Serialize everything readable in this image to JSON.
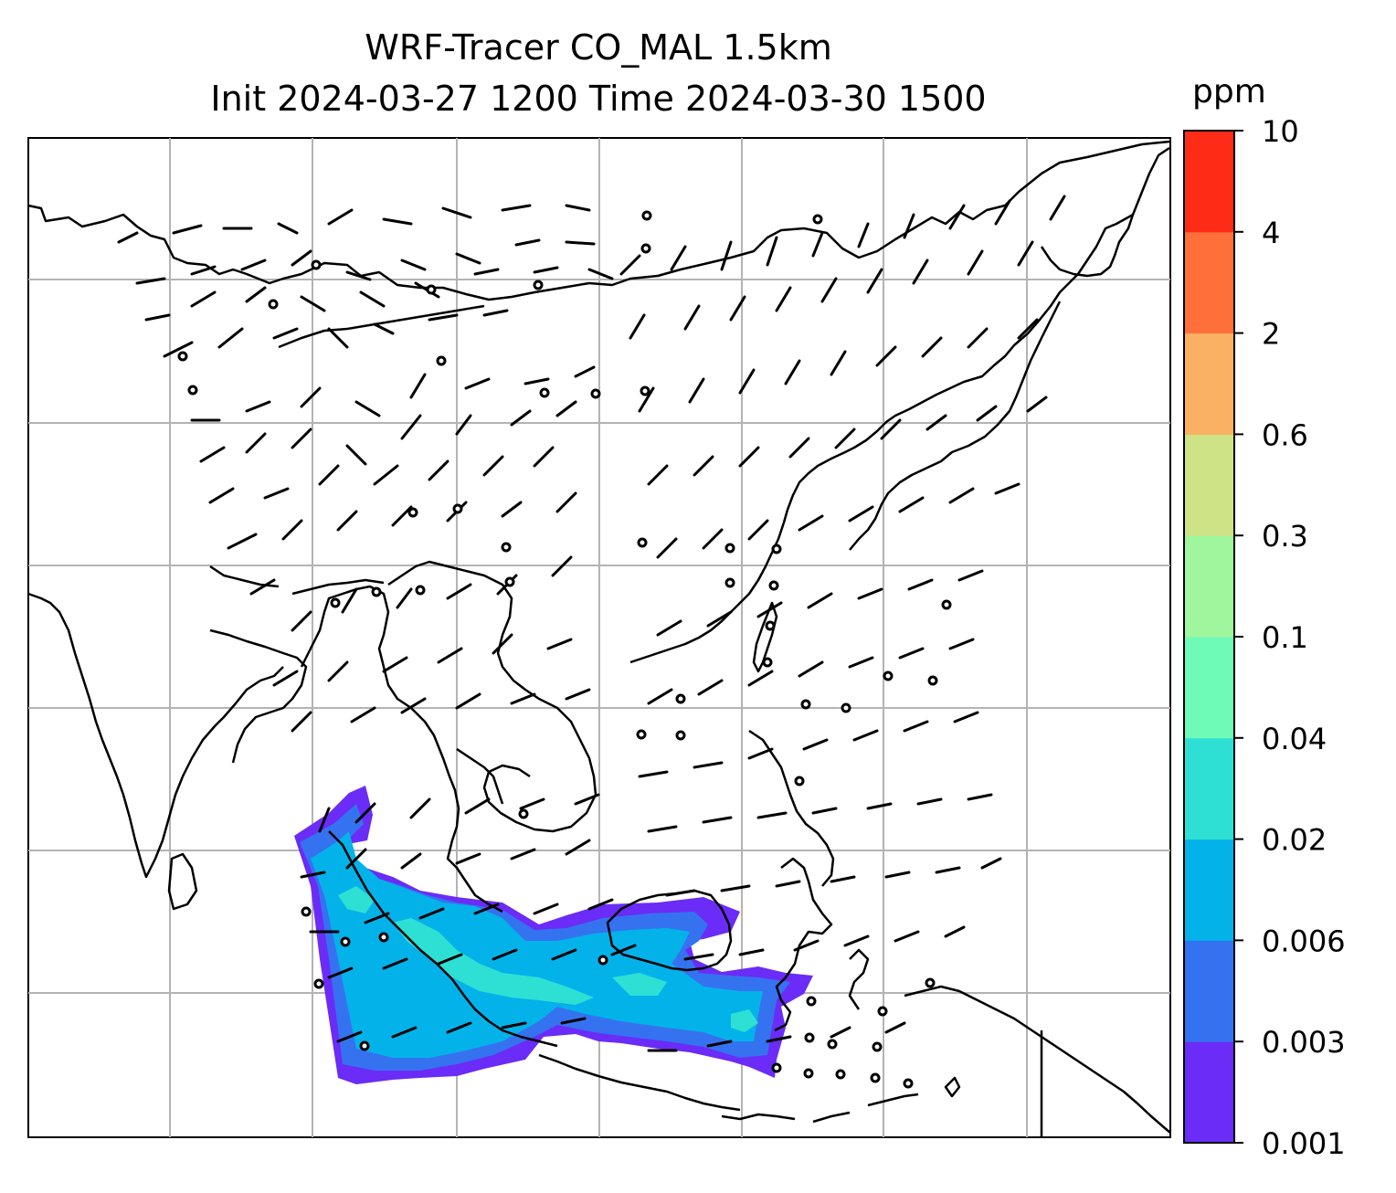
{
  "title": {
    "line1": "WRF-Tracer CO_MAL 1.5km",
    "line2": "Init 2024-03-27 1200 Time 2024-03-30 1500"
  },
  "colorbar": {
    "unit": "ppm",
    "levels": [
      "0.001",
      "0.003",
      "0.006",
      "0.02",
      "0.04",
      "0.1",
      "0.3",
      "0.6",
      "2",
      "4",
      "10"
    ],
    "colors": [
      "#6a2cf6",
      "#3572f0",
      "#04b2ea",
      "#2ee0d4",
      "#6efbb8",
      "#9ff69c",
      "#cee286",
      "#fbb163",
      "#fe6f3a",
      "#fe2b17"
    ]
  },
  "plume": {
    "colors": {
      "outer": "#6a2cf6",
      "mid": "#3572f0",
      "inner": "#04b2ea",
      "core": "#2ee0d4"
    }
  },
  "gridline_color": "#b3b3b3"
}
